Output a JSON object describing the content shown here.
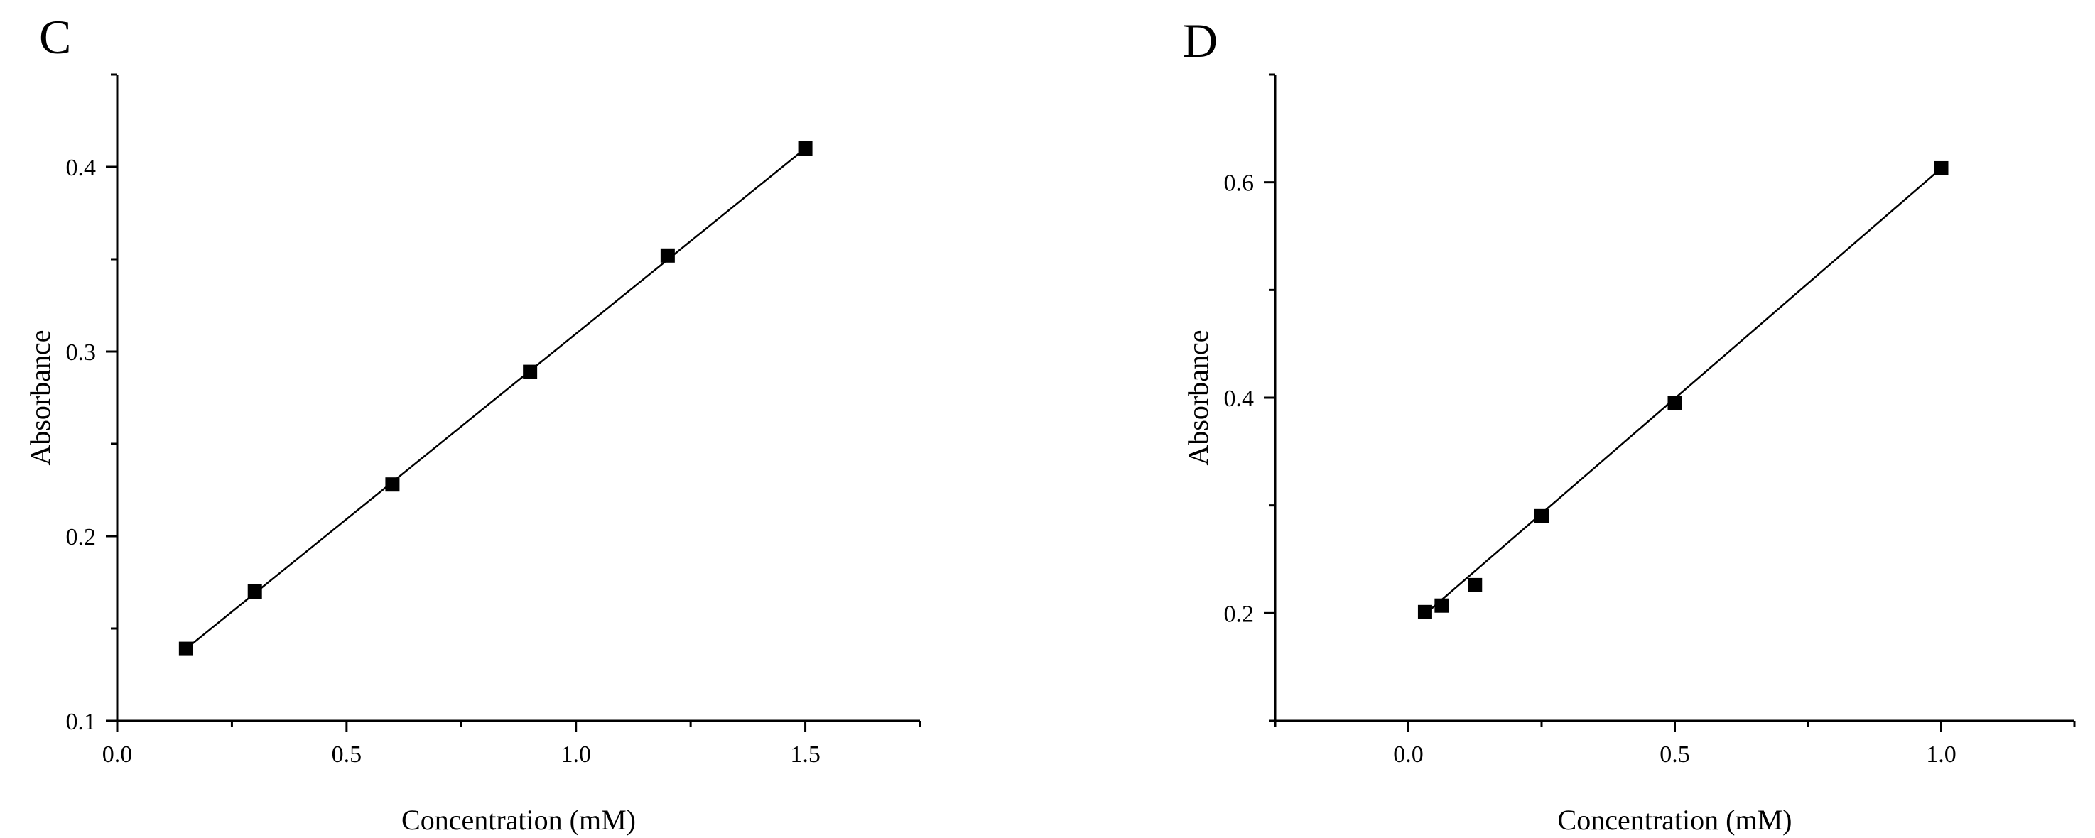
{
  "chart_data": [
    {
      "type": "scatter",
      "panel_label": "C",
      "xlabel": "Concentration (mM)",
      "ylabel": "Absorbance",
      "xlim": [
        0.0,
        1.75
      ],
      "ylim": [
        0.1,
        0.45
      ],
      "x_ticks": [
        0.0,
        0.5,
        1.0,
        1.5
      ],
      "x_tick_labels": [
        "0.0",
        "0.5",
        "1.0",
        "1.5"
      ],
      "x_minor_ticks": [
        0.25,
        0.75,
        1.25,
        1.75
      ],
      "y_ticks": [
        0.1,
        0.2,
        0.3,
        0.4
      ],
      "y_tick_labels": [
        "0.1",
        "0.2",
        "0.3",
        "0.4"
      ],
      "y_minor_ticks": [
        0.15,
        0.25,
        0.35,
        0.45
      ],
      "grid": false,
      "marker": "square",
      "color": "#000000",
      "x": [
        0.15,
        0.3,
        0.6,
        0.9,
        1.2,
        1.5
      ],
      "y": [
        0.139,
        0.17,
        0.228,
        0.289,
        0.352,
        0.41
      ],
      "fit_line": {
        "x": [
          0.15,
          1.5
        ],
        "y": [
          0.139,
          0.41
        ]
      }
    },
    {
      "type": "scatter",
      "panel_label": "D",
      "xlabel": "Concentration (mM)",
      "ylabel": "Absorbance",
      "xlim": [
        -0.25,
        1.25
      ],
      "ylim": [
        0.1,
        0.7
      ],
      "x_ticks": [
        0.0,
        0.5,
        1.0
      ],
      "x_tick_labels": [
        "0.0",
        "0.5",
        "1.0"
      ],
      "x_minor_ticks": [
        -0.25,
        0.25,
        0.75,
        1.25
      ],
      "y_ticks": [
        0.2,
        0.4,
        0.6
      ],
      "y_tick_labels": [
        "0.2",
        "0.4",
        "0.6"
      ],
      "y_minor_ticks": [
        0.1,
        0.3,
        0.5,
        0.7
      ],
      "grid": false,
      "marker": "square",
      "color": "#000000",
      "x": [
        0.03125,
        0.0625,
        0.125,
        0.25,
        0.5,
        1.0
      ],
      "y": [
        0.201,
        0.207,
        0.226,
        0.29,
        0.395,
        0.613
      ],
      "fit_line": {
        "x": [
          0.03125,
          1.0
        ],
        "y": [
          0.199,
          0.613
        ]
      }
    }
  ]
}
